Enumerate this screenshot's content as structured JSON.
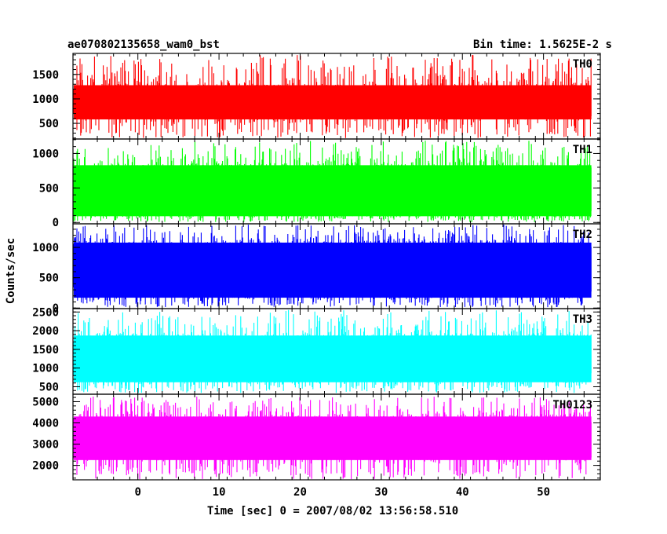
{
  "chart_data": {
    "type": "line",
    "title": "ae070802135658_wam0_bst",
    "subtitle": "Bin time: 1.5625E-2 s",
    "xlabel": "Time [sec] 0 = 2007/08/02 13:56:58.510",
    "ylabel": "Counts/sec",
    "xlim": [
      -8,
      57
    ],
    "x_ticks": [
      0,
      10,
      20,
      30,
      40,
      50
    ],
    "x_tick_labels": [
      "0",
      "10",
      "20",
      "30",
      "40",
      "50"
    ],
    "data_x_range": [
      -7.9,
      55.9
    ],
    "panels": [
      {
        "name": "TH0",
        "color": "#ff0000",
        "ylim": [
          180,
          1930
        ],
        "y_ticks": [
          500,
          1000,
          1500
        ],
        "y_tick_labels": [
          "500",
          "1000",
          "1500"
        ],
        "mean": 900,
        "band": [
          580,
          1280
        ],
        "data_min": 200,
        "data_max": 1900
      },
      {
        "name": "TH1",
        "color": "#00ff00",
        "ylim": [
          -20,
          1210
        ],
        "y_ticks": [
          0,
          500,
          1000
        ],
        "y_tick_labels": [
          "0",
          "500",
          "1000"
        ],
        "mean": 400,
        "band": [
          90,
          830
        ],
        "data_min": 5,
        "data_max": 1190
      },
      {
        "name": "TH2",
        "color": "#0000ff",
        "ylim": [
          -10,
          1390
        ],
        "y_ticks": [
          0,
          500,
          1000
        ],
        "y_tick_labels": [
          "0",
          "500",
          "1000"
        ],
        "mean": 620,
        "band": [
          170,
          1080
        ],
        "data_min": 15,
        "data_max": 1380
      },
      {
        "name": "TH3",
        "color": "#00ffff",
        "ylim": [
          300,
          2590
        ],
        "y_ticks": [
          500,
          1000,
          1500,
          2000,
          2500
        ],
        "y_tick_labels": [
          "500",
          "1000",
          "1500",
          "2000",
          "2500"
        ],
        "mean": 1250,
        "band": [
          620,
          1870
        ],
        "data_min": 330,
        "data_max": 2560
      },
      {
        "name": "TH0123",
        "color": "#ff00ff",
        "ylim": [
          1320,
          5350
        ],
        "y_ticks": [
          2000,
          3000,
          4000,
          5000
        ],
        "y_tick_labels": [
          "2000",
          "3000",
          "4000",
          "5000"
        ],
        "mean": 3150,
        "band": [
          2250,
          4300
        ],
        "data_min": 1350,
        "data_max": 5250
      }
    ]
  }
}
